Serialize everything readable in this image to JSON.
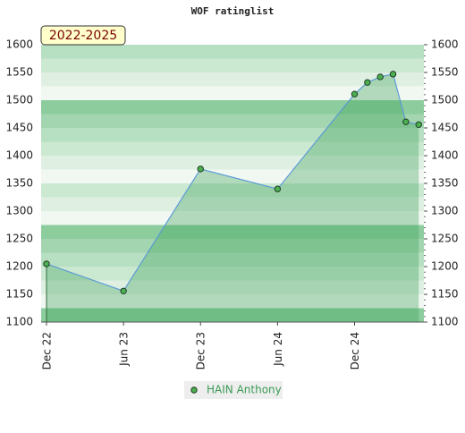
{
  "chart_data": {
    "type": "line",
    "title": "WOF ratinglist",
    "annotation": "2022-2025",
    "x": [
      0,
      6,
      12,
      18,
      24,
      25,
      26,
      27,
      28,
      29
    ],
    "xlim": [
      0,
      29.4
    ],
    "xticks": [
      {
        "value": 0,
        "label": "Dec 22"
      },
      {
        "value": 6,
        "label": "Jun 23"
      },
      {
        "value": 12,
        "label": "Dec 23"
      },
      {
        "value": 18,
        "label": "Jun 24"
      },
      {
        "value": 24,
        "label": "Dec 24"
      }
    ],
    "series": [
      {
        "name": "HAIN Anthony",
        "color": "#5b9bd5",
        "marker_color": "#4caf50",
        "values": [
          1205,
          1156,
          1376,
          1340,
          1511,
          1532,
          1542,
          1547,
          1461,
          1456
        ]
      }
    ],
    "ylim": [
      1100,
      1600
    ],
    "yticks": [
      1100,
      1150,
      1200,
      1250,
      1300,
      1350,
      1400,
      1450,
      1500,
      1550,
      1600
    ],
    "grid": true
  }
}
